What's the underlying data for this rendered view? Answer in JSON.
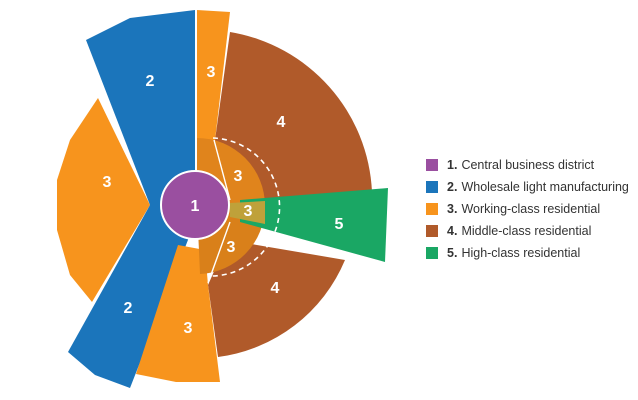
{
  "zones": [
    {
      "number": "1",
      "label": "Central business district",
      "color": "#9a4fa0"
    },
    {
      "number": "2",
      "label": "Wholesale light manufacturing",
      "color": "#1b75bb"
    },
    {
      "number": "3",
      "label": "Working-class residential",
      "color": "#f7941d"
    },
    {
      "number": "4",
      "label": "Middle-class residential",
      "color": "#b05a2a"
    },
    {
      "number": "5",
      "label": "High-class residential",
      "color": "#1aa764"
    }
  ],
  "legend": [
    {
      "number": "1.",
      "label": "Central business district",
      "color": "#9a4fa0"
    },
    {
      "number": "2.",
      "label": "Wholesale light manufacturing",
      "color": "#1b75bb"
    },
    {
      "number": "3.",
      "label": "Working-class residential",
      "color": "#f7941d"
    },
    {
      "number": "4.",
      "label": "Middle-class residential",
      "color": "#b05a2a"
    },
    {
      "number": "5.",
      "label": "High-class residential",
      "color": "#1aa764"
    }
  ],
  "map_labels": {
    "cbd": "1",
    "manufacturing_top": "2",
    "manufacturing_bottom": "2",
    "working_left": "3",
    "working_top": "3",
    "working_bottom": "3",
    "working_inner_top": "3",
    "working_inner_mid": "3",
    "working_inner_bottom": "3",
    "middle_top": "4",
    "middle_bottom": "4",
    "high": "5"
  }
}
